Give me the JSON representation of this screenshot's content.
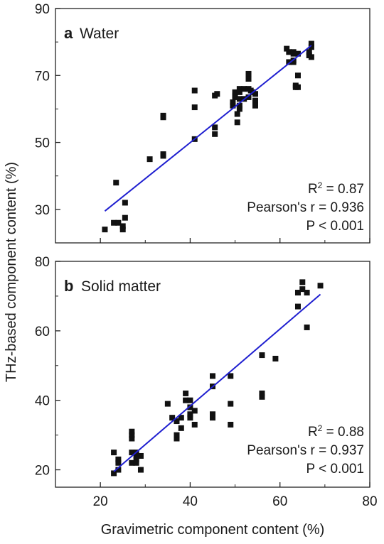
{
  "chart_data": [
    {
      "type": "scatter",
      "panel_letter": "a",
      "title": "Water",
      "xlim": [
        10,
        80
      ],
      "ylim": [
        20,
        90
      ],
      "xticks": [
        20,
        40,
        60,
        80
      ],
      "yticks": [
        30,
        50,
        70,
        90
      ],
      "fit_line": {
        "x": [
          21,
          67
        ],
        "y": [
          29.5,
          79
        ],
        "color": "#1f1fd0"
      },
      "stats": [
        "R² = 0.87",
        "Pearson's r = 0.936",
        "P < 0.001"
      ],
      "points": [
        [
          21,
          24
        ],
        [
          23,
          26
        ],
        [
          23.5,
          38
        ],
        [
          24,
          26
        ],
        [
          25,
          25
        ],
        [
          25,
          24
        ],
        [
          25.5,
          27.5
        ],
        [
          25.5,
          32
        ],
        [
          31,
          45
        ],
        [
          34,
          46
        ],
        [
          34,
          46.5
        ],
        [
          34,
          57.5
        ],
        [
          34,
          58
        ],
        [
          41,
          51
        ],
        [
          41,
          60.5
        ],
        [
          41,
          65.5
        ],
        [
          45.5,
          52.5
        ],
        [
          45.5,
          54.5
        ],
        [
          45.5,
          64
        ],
        [
          46,
          64.5
        ],
        [
          49.5,
          61
        ],
        [
          49.5,
          62
        ],
        [
          50,
          63.5
        ],
        [
          50,
          64
        ],
        [
          50,
          65
        ],
        [
          50.5,
          56
        ],
        [
          50.5,
          58.5
        ],
        [
          51,
          60
        ],
        [
          51,
          61
        ],
        [
          51,
          63
        ],
        [
          51,
          65
        ],
        [
          51,
          66
        ],
        [
          52,
          66
        ],
        [
          52,
          63
        ],
        [
          53,
          69
        ],
        [
          53,
          70
        ],
        [
          53,
          70.5
        ],
        [
          53,
          66
        ],
        [
          53,
          63.5
        ],
        [
          53.5,
          65.5
        ],
        [
          54,
          65
        ],
        [
          54.5,
          62.5
        ],
        [
          54.5,
          61
        ],
        [
          54.5,
          64.5
        ],
        [
          61.5,
          78
        ],
        [
          62,
          74
        ],
        [
          62,
          77
        ],
        [
          63,
          74
        ],
        [
          63,
          74.5
        ],
        [
          63,
          76.5
        ],
        [
          63,
          77
        ],
        [
          63.5,
          66.5
        ],
        [
          63.5,
          67
        ],
        [
          64,
          70
        ],
        [
          64,
          66.5
        ],
        [
          64,
          76.5
        ],
        [
          66.5,
          76
        ],
        [
          66.5,
          77
        ],
        [
          67,
          79.5
        ],
        [
          67,
          75.5
        ],
        [
          67,
          78.5
        ]
      ]
    },
    {
      "type": "scatter",
      "panel_letter": "b",
      "title": "Solid matter",
      "xlim": [
        10,
        80
      ],
      "ylim": [
        15,
        80
      ],
      "xticks": [
        20,
        40,
        60,
        80
      ],
      "yticks": [
        20,
        40,
        60,
        80
      ],
      "fit_line": {
        "x": [
          23,
          69
        ],
        "y": [
          19.5,
          70.5
        ],
        "color": "#1f1fd0"
      },
      "stats": [
        "R² = 0.88",
        "Pearson's r = 0.937",
        "P < 0.001"
      ],
      "points": [
        [
          23,
          19
        ],
        [
          23,
          25
        ],
        [
          24,
          20
        ],
        [
          24,
          22
        ],
        [
          24,
          23
        ],
        [
          27,
          22
        ],
        [
          27,
          25
        ],
        [
          27,
          29
        ],
        [
          27,
          30
        ],
        [
          27,
          31
        ],
        [
          28,
          22
        ],
        [
          28,
          23
        ],
        [
          28,
          24
        ],
        [
          28,
          25
        ],
        [
          29,
          20
        ],
        [
          29,
          24
        ],
        [
          35,
          39
        ],
        [
          36,
          35
        ],
        [
          37,
          29
        ],
        [
          37,
          30
        ],
        [
          37,
          34
        ],
        [
          38,
          32
        ],
        [
          38,
          35
        ],
        [
          39,
          40
        ],
        [
          39,
          42
        ],
        [
          40,
          35
        ],
        [
          40,
          36
        ],
        [
          40,
          38
        ],
        [
          40,
          40
        ],
        [
          41,
          33
        ],
        [
          41,
          37
        ],
        [
          45,
          35
        ],
        [
          45,
          36
        ],
        [
          45,
          44
        ],
        [
          45,
          47
        ],
        [
          49,
          33
        ],
        [
          49,
          39
        ],
        [
          49,
          47
        ],
        [
          56,
          41
        ],
        [
          56,
          42
        ],
        [
          56,
          53
        ],
        [
          59,
          52
        ],
        [
          64,
          67
        ],
        [
          64,
          71
        ],
        [
          65,
          72
        ],
        [
          65,
          74
        ],
        [
          66,
          61
        ],
        [
          66,
          71
        ],
        [
          69,
          73
        ]
      ]
    }
  ],
  "shared_ylabel": "THz-based component content (%)",
  "shared_xlabel": "Gravimetric component content (%)"
}
